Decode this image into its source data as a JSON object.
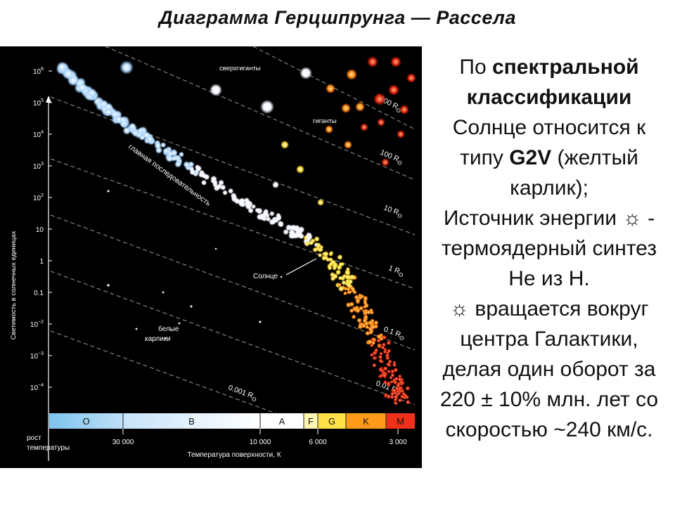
{
  "title": "Диаграмма Герцшпрунга — Рассела",
  "diagram": {
    "y_axis_label": "Светимость в солнечных единицах",
    "y_ticks": [
      {
        "base": "10",
        "exp": "6"
      },
      {
        "base": "10",
        "exp": "5"
      },
      {
        "base": "10",
        "exp": "4"
      },
      {
        "base": "10",
        "exp": "3"
      },
      {
        "base": "10",
        "exp": "2"
      },
      {
        "base": "10",
        "exp": ""
      },
      {
        "base": "1",
        "exp": ""
      },
      {
        "base": "0.1",
        "exp": ""
      },
      {
        "base": "10",
        "exp": "−2"
      },
      {
        "base": "10",
        "exp": "−3"
      },
      {
        "base": "10",
        "exp": "−4"
      }
    ],
    "x_axis_label": "Температура поверхности, К",
    "x_ticks": [
      "30 000",
      "10 000",
      "6 000",
      "3 000"
    ],
    "growth_label_line1": "рост",
    "growth_label_line2": "температуры",
    "spectral_classes": [
      {
        "label": "O",
        "color": "#7ec3ee"
      },
      {
        "label": "B",
        "color": "#cfe8fb"
      },
      {
        "label": "A",
        "color": "#ffffff"
      },
      {
        "label": "F",
        "color": "#fff6b0"
      },
      {
        "label": "G",
        "color": "#ffe14a"
      },
      {
        "label": "K",
        "color": "#ff9a1a"
      },
      {
        "label": "M",
        "color": "#f0301a"
      }
    ],
    "radius_lines": [
      "1000 R",
      "100 R",
      "10 R",
      "1 R",
      "0.1 R",
      "0.01 R",
      "0.001 R"
    ],
    "radius_symbol": "ʘ",
    "label_supergiants": "сверхгиганты",
    "label_giants": "гиганты",
    "label_main_sequence": "главная последовательность",
    "label_sun": "Солнце",
    "label_white_dwarfs_line1": "белые",
    "label_white_dwarfs_line2": "карлики"
  },
  "description": {
    "l1": "По ",
    "l1b": "спектральной",
    "l2b": "классификации",
    "l3": "Солнце относится к",
    "l4a": "типу ",
    "l4b": "G2V",
    "l4c": " (желтый",
    "l5": "карлик);",
    "l6": "Источник энергии ☼ -",
    "l7": "термоядерный синтез",
    "l8": "Не из Н.",
    "l9": "☼ вращается вокруг",
    "l10": "центра Галактики,",
    "l11": "делая один оборот за",
    "l12": "220 ± 10% млн. лет со",
    "l13": "скоростью ~240 км/с."
  }
}
